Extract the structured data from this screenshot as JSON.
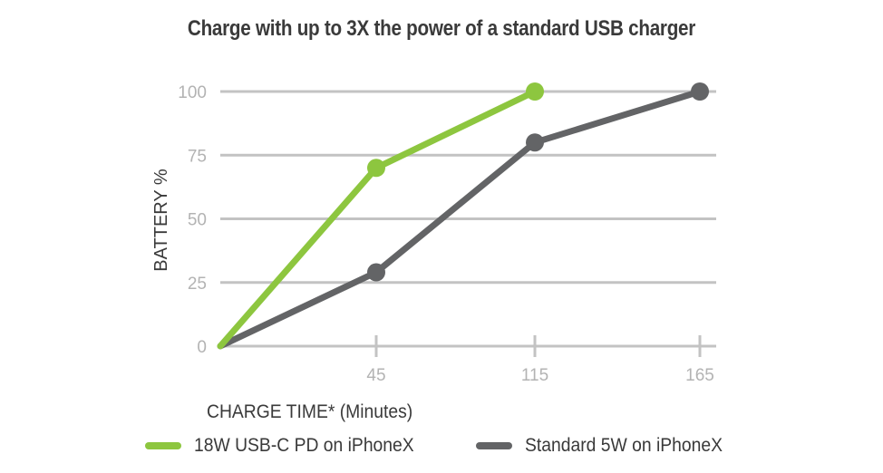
{
  "chart_data": {
    "type": "line",
    "title": "Charge with up to 3X the power of a standard USB charger",
    "xlabel": "CHARGE TIME* (Minutes)",
    "ylabel": "BATTERY %",
    "x_ticks": [
      "45",
      "115",
      "165"
    ],
    "y_ticks": [
      "0",
      "25",
      "50",
      "75",
      "100"
    ],
    "ylim": [
      0,
      100
    ],
    "grid": "horizontal",
    "legend_position": "bottom",
    "series": [
      {
        "name": "18W USB-C PD on iPhoneX",
        "color": "#8dc63f",
        "x": [
          0,
          45,
          115
        ],
        "y": [
          0,
          70,
          100
        ]
      },
      {
        "name": "Standard 5W on iPhoneX",
        "color": "#636466",
        "x": [
          0,
          45,
          115,
          165
        ],
        "y": [
          0,
          29,
          80,
          100
        ]
      }
    ]
  }
}
